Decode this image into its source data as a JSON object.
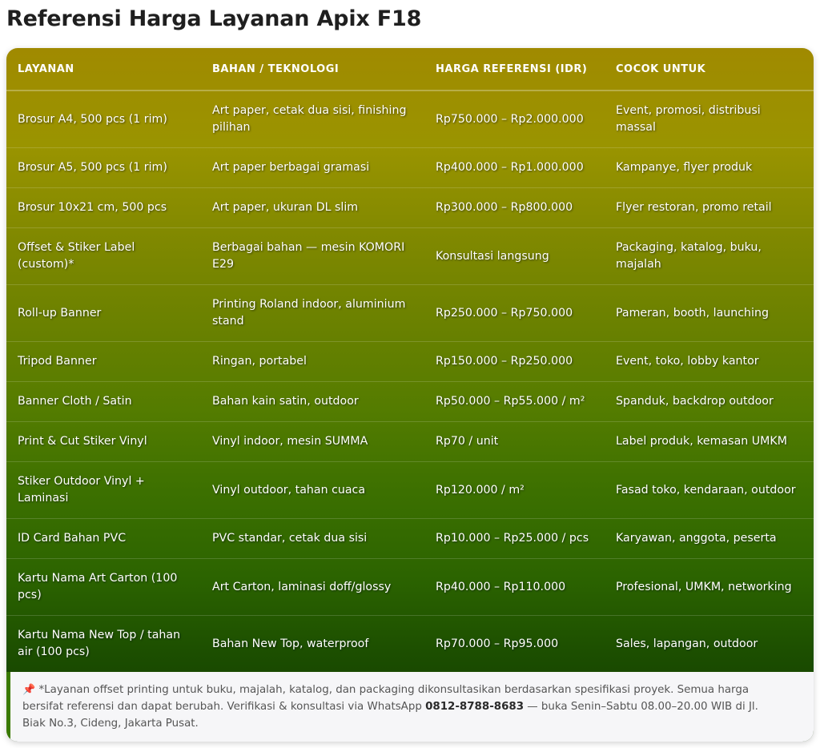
{
  "page": {
    "title": "Referensi Harga Layanan Apix F18"
  },
  "table": {
    "headers": [
      "LAYANAN",
      "BAHAN / TEKNOLOGI",
      "HARGA REFERENSI (IDR)",
      "COCOK UNTUK"
    ],
    "rows": [
      [
        "Brosur A4, 500 pcs (1 rim)",
        "Art paper, cetak dua sisi, finishing pilihan",
        "Rp750.000 – Rp2.000.000",
        "Event, promosi, distribusi massal"
      ],
      [
        "Brosur A5, 500 pcs (1 rim)",
        "Art paper berbagai gramasi",
        "Rp400.000 – Rp1.000.000",
        "Kampanye, flyer produk"
      ],
      [
        "Brosur 10x21 cm, 500 pcs",
        "Art paper, ukuran DL slim",
        "Rp300.000 – Rp800.000",
        "Flyer restoran, promo retail"
      ],
      [
        "Offset & Stiker Label (custom)*",
        "Berbagai bahan — mesin KOMORI E29",
        "Konsultasi langsung",
        "Packaging, katalog, buku, majalah"
      ],
      [
        "Roll-up Banner",
        "Printing Roland indoor, aluminium stand",
        "Rp250.000 – Rp750.000",
        "Pameran, booth, launching"
      ],
      [
        "Tripod Banner",
        "Ringan, portabel",
        "Rp150.000 – Rp250.000",
        "Event, toko, lobby kantor"
      ],
      [
        "Banner Cloth / Satin",
        "Bahan kain satin, outdoor",
        "Rp50.000 – Rp55.000 / m²",
        "Spanduk, backdrop outdoor"
      ],
      [
        "Print & Cut Stiker Vinyl",
        "Vinyl indoor, mesin SUMMA",
        "Rp70 / unit",
        "Label produk, kemasan UMKM"
      ],
      [
        "Stiker Outdoor Vinyl + Laminasi",
        "Vinyl outdoor, tahan cuaca",
        "Rp120.000 / m²",
        "Fasad toko, kendaraan, outdoor"
      ],
      [
        "ID Card Bahan PVC",
        "PVC standar, cetak dua sisi",
        "Rp10.000 – Rp25.000 / pcs",
        "Karyawan, anggota, peserta"
      ],
      [
        "Kartu Nama Art Carton (100 pcs)",
        "Art Carton, laminasi doff/glossy",
        "Rp40.000 – Rp110.000",
        "Profesional, UMKM, networking"
      ],
      [
        "Kartu Nama New Top / tahan air (100 pcs)",
        "Bahan New Top, waterproof",
        "Rp70.000 – Rp95.000",
        "Sales, lapangan, outdoor"
      ]
    ]
  },
  "note": {
    "icon": "pushpin-icon",
    "text_before": "*Layanan offset printing untuk buku, majalah, katalog, dan packaging dikonsultasikan berdasarkan spesifikasi proyek. Semua harga bersifat referensi dan dapat berubah. Verifikasi & konsultasi via WhatsApp ",
    "phone": "0812-8788-8683",
    "text_after": " — buka Senin–Sabtu 08.00–20.00 WIB di Jl. Biak No.3, Cideng, Jakarta Pusat."
  },
  "colors": {
    "header_gold": "#a08a00",
    "row_green_dark": "#123800",
    "note_background": "#f6f6f8",
    "note_accent": "#3a7a00"
  }
}
